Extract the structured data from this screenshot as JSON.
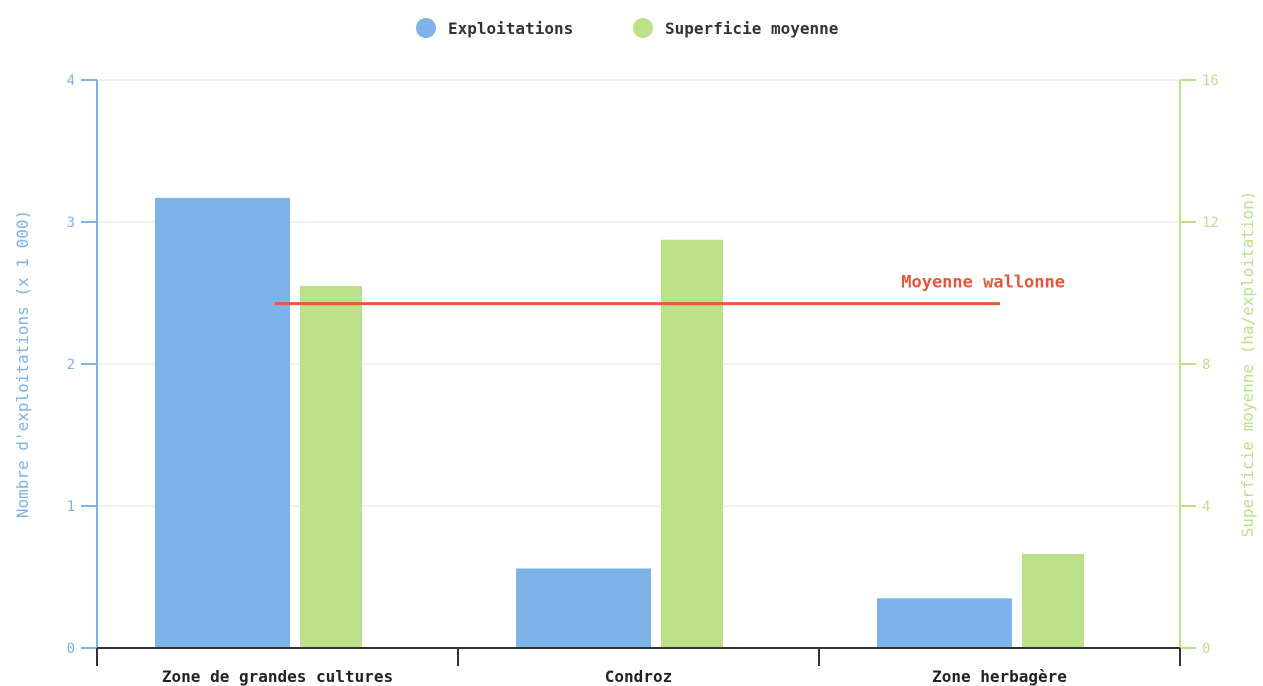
{
  "chart_data": {
    "type": "bar",
    "categories": [
      "Zone de grandes cultures",
      "Condroz",
      "Zone herbagère"
    ],
    "series": [
      {
        "name": "Exploitations",
        "axis": "left",
        "color": "#7db3e8",
        "values": [
          3.17,
          0.56,
          0.35
        ]
      },
      {
        "name": "Superficie moyenne",
        "axis": "right",
        "color": "#bde08a",
        "values": [
          10.2,
          11.5,
          2.65
        ]
      }
    ],
    "ylabel": "Nombre d'exploitations (x 1 000)",
    "ylabel_right": "Superficie moyenne (ha/exploitation)",
    "ylim": [
      0,
      4
    ],
    "ylim_right": [
      0,
      16
    ],
    "yticks": [
      "0",
      "1",
      "2",
      "3",
      "4"
    ],
    "yticks_right": [
      "0",
      "4",
      "8",
      "12",
      "16"
    ],
    "grid": true,
    "legend_position": "top-center",
    "annotation": {
      "label": "Moyenne wallonne",
      "axis": "right",
      "value": 9.7,
      "color": "#e8573a"
    }
  }
}
